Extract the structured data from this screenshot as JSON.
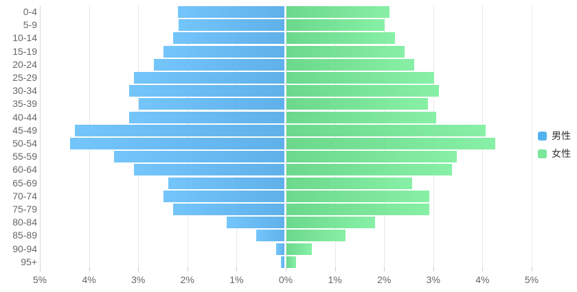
{
  "chart_data": {
    "type": "bar",
    "subtype": "population-pyramid",
    "title": "",
    "categories": [
      "0-4",
      "5-9",
      "10-14",
      "15-19",
      "20-24",
      "25-29",
      "30-34",
      "35-39",
      "40-44",
      "45-49",
      "50-54",
      "55-59",
      "60-64",
      "65-69",
      "70-74",
      "75-79",
      "80-84",
      "85-89",
      "90-94",
      "95+"
    ],
    "series": [
      {
        "name": "男性",
        "side": "left",
        "unit": "%",
        "values": [
          2.17,
          2.15,
          2.26,
          2.46,
          2.65,
          3.06,
          3.16,
          2.96,
          3.16,
          4.26,
          4.36,
          3.46,
          3.06,
          2.36,
          2.46,
          2.26,
          1.17,
          0.57,
          0.17,
          0.07
        ],
        "gradient": [
          "#73c5fa",
          "#60b0ea"
        ],
        "legend_color": "#54b1ee"
      },
      {
        "name": "女性",
        "side": "right",
        "unit": "%",
        "values": [
          2.1,
          2.0,
          2.2,
          2.4,
          2.6,
          3.0,
          3.1,
          2.88,
          3.05,
          4.05,
          4.25,
          3.46,
          3.36,
          2.56,
          2.9,
          2.9,
          1.8,
          1.2,
          0.52,
          0.2
        ],
        "gradient": [
          "#6bd88c",
          "#87f0a6"
        ],
        "legend_color": "#79e69a"
      }
    ],
    "x_axis": {
      "max": 5,
      "grid": true,
      "ticks": [
        {
          "label": "5%",
          "value": -5
        },
        {
          "label": "4%",
          "value": -4
        },
        {
          "label": "3%",
          "value": -3
        },
        {
          "label": "2%",
          "value": -2
        },
        {
          "label": "1%",
          "value": -1
        },
        {
          "label": "0%",
          "value": 0
        },
        {
          "label": "1%",
          "value": 1
        },
        {
          "label": "2%",
          "value": 2
        },
        {
          "label": "3%",
          "value": 3
        },
        {
          "label": "4%",
          "value": 4
        },
        {
          "label": "5%",
          "value": 5
        }
      ]
    },
    "legend": {
      "position": "right",
      "layout": "vertical"
    },
    "colors": {
      "grid_line": "#e7e7e7",
      "axis_line": "#d6d6d6",
      "axis_tick": "#cccccc",
      "axis_label_text": "#666666",
      "legend_text": "#333333",
      "background": "#ffffff"
    }
  }
}
